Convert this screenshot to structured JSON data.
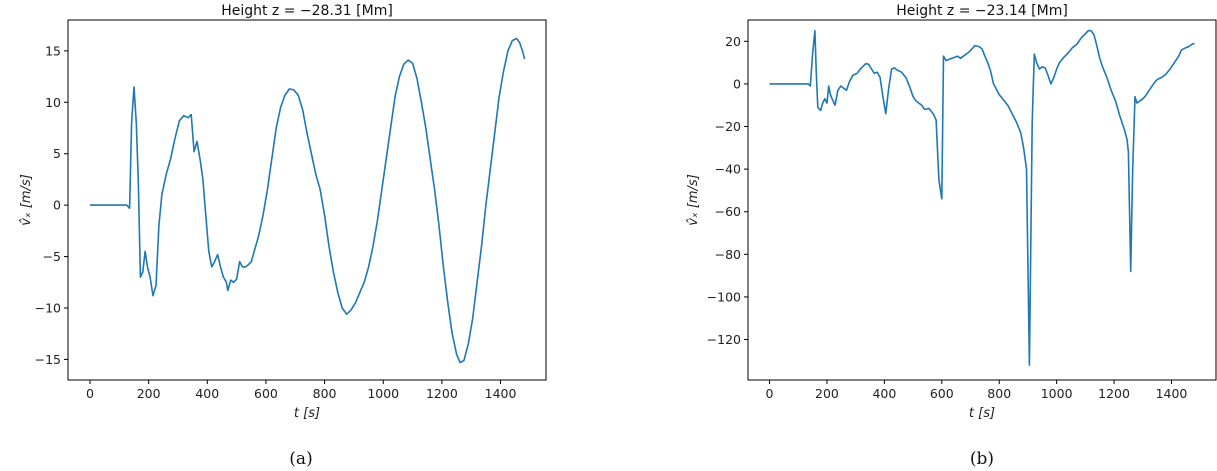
{
  "chart_data": [
    {
      "type": "line",
      "title": "Height z = −28.31 [Mm]",
      "xlabel": "t [s]",
      "ylabel": "v̂ₓ [m/s]",
      "caption": "(a)",
      "xlim": [
        -75,
        1555
      ],
      "ylim": [
        -17,
        18
      ],
      "xticks": [
        0,
        200,
        400,
        600,
        800,
        1000,
        1200,
        1400
      ],
      "yticks": [
        -15,
        -10,
        -5,
        0,
        5,
        10,
        15
      ],
      "series": [
        {
          "color": "#1f77b4",
          "points": [
            [
              0,
              0
            ],
            [
              60,
              0
            ],
            [
              110,
              0
            ],
            [
              125,
              0
            ],
            [
              135,
              -0.3
            ],
            [
              142,
              8
            ],
            [
              150,
              11.5
            ],
            [
              158,
              8
            ],
            [
              165,
              2
            ],
            [
              172,
              -7
            ],
            [
              180,
              -6.5
            ],
            [
              188,
              -4.5
            ],
            [
              196,
              -6
            ],
            [
              205,
              -7
            ],
            [
              215,
              -8.8
            ],
            [
              225,
              -7.8
            ],
            [
              235,
              -2
            ],
            [
              245,
              1
            ],
            [
              260,
              3
            ],
            [
              275,
              4.5
            ],
            [
              290,
              6.5
            ],
            [
              305,
              8.2
            ],
            [
              320,
              8.7
            ],
            [
              335,
              8.5
            ],
            [
              345,
              8.8
            ],
            [
              355,
              5.2
            ],
            [
              365,
              6.2
            ],
            [
              375,
              4.5
            ],
            [
              385,
              2.5
            ],
            [
              395,
              -1
            ],
            [
              405,
              -4.5
            ],
            [
              415,
              -6
            ],
            [
              425,
              -5.5
            ],
            [
              435,
              -4.8
            ],
            [
              445,
              -6
            ],
            [
              455,
              -7
            ],
            [
              465,
              -7.5
            ],
            [
              470,
              -8.3
            ],
            [
              480,
              -7.3
            ],
            [
              490,
              -7.5
            ],
            [
              500,
              -7.2
            ],
            [
              510,
              -5.5
            ],
            [
              520,
              -6
            ],
            [
              530,
              -6
            ],
            [
              540,
              -5.8
            ],
            [
              550,
              -5.5
            ],
            [
              560,
              -4.5
            ],
            [
              575,
              -3
            ],
            [
              590,
              -1
            ],
            [
              605,
              1.5
            ],
            [
              620,
              4.5
            ],
            [
              635,
              7.5
            ],
            [
              650,
              9.5
            ],
            [
              665,
              10.7
            ],
            [
              680,
              11.3
            ],
            [
              695,
              11.2
            ],
            [
              710,
              10.7
            ],
            [
              725,
              9.3
            ],
            [
              740,
              7
            ],
            [
              755,
              5
            ],
            [
              770,
              3
            ],
            [
              785,
              1.5
            ],
            [
              800,
              -1
            ],
            [
              815,
              -4
            ],
            [
              830,
              -6.5
            ],
            [
              845,
              -8.5
            ],
            [
              860,
              -10
            ],
            [
              875,
              -10.6
            ],
            [
              890,
              -10.2
            ],
            [
              905,
              -9.5
            ],
            [
              920,
              -8.5
            ],
            [
              935,
              -7.5
            ],
            [
              950,
              -6
            ],
            [
              965,
              -4
            ],
            [
              980,
              -1.5
            ],
            [
              995,
              1.5
            ],
            [
              1010,
              4.5
            ],
            [
              1025,
              7.5
            ],
            [
              1040,
              10.5
            ],
            [
              1055,
              12.5
            ],
            [
              1070,
              13.7
            ],
            [
              1085,
              14.1
            ],
            [
              1100,
              13.8
            ],
            [
              1115,
              12.3
            ],
            [
              1130,
              10
            ],
            [
              1145,
              7.5
            ],
            [
              1160,
              4.5
            ],
            [
              1175,
              1.5
            ],
            [
              1190,
              -2
            ],
            [
              1205,
              -6
            ],
            [
              1220,
              -9.5
            ],
            [
              1235,
              -12.5
            ],
            [
              1250,
              -14.5
            ],
            [
              1262,
              -15.3
            ],
            [
              1275,
              -15.1
            ],
            [
              1290,
              -13.5
            ],
            [
              1305,
              -11
            ],
            [
              1320,
              -7.5
            ],
            [
              1335,
              -4
            ],
            [
              1350,
              0
            ],
            [
              1365,
              3.5
            ],
            [
              1380,
              7
            ],
            [
              1395,
              10.5
            ],
            [
              1410,
              13
            ],
            [
              1425,
              15
            ],
            [
              1440,
              16
            ],
            [
              1455,
              16.2
            ],
            [
              1465,
              15.8
            ],
            [
              1475,
              15
            ],
            [
              1482,
              14.2
            ]
          ]
        }
      ]
    },
    {
      "type": "line",
      "title": "Height z = −23.14 [Mm]",
      "xlabel": "t [s]",
      "ylabel": "v̂ₓ [m/s]",
      "caption": "(b)",
      "xlim": [
        -75,
        1555
      ],
      "ylim": [
        -139,
        30
      ],
      "xticks": [
        0,
        200,
        400,
        600,
        800,
        1000,
        1200,
        1400
      ],
      "yticks": [
        -120,
        -100,
        -80,
        -60,
        -40,
        -20,
        0,
        20
      ],
      "series": [
        {
          "color": "#1f77b4",
          "points": [
            [
              0,
              0
            ],
            [
              60,
              0
            ],
            [
              120,
              0
            ],
            [
              135,
              0
            ],
            [
              142,
              -1
            ],
            [
              150,
              14
            ],
            [
              158,
              25
            ],
            [
              163,
              5
            ],
            [
              168,
              -11
            ],
            [
              178,
              -12.5
            ],
            [
              185,
              -9
            ],
            [
              193,
              -7
            ],
            [
              200,
              -9
            ],
            [
              206,
              -1
            ],
            [
              212,
              -5
            ],
            [
              218,
              -7
            ],
            [
              228,
              -10
            ],
            [
              238,
              -3
            ],
            [
              248,
              -1
            ],
            [
              258,
              -2
            ],
            [
              268,
              -3
            ],
            [
              278,
              1
            ],
            [
              290,
              4
            ],
            [
              305,
              5
            ],
            [
              320,
              7.5
            ],
            [
              335,
              9.5
            ],
            [
              345,
              9.2
            ],
            [
              355,
              7
            ],
            [
              365,
              5
            ],
            [
              375,
              5.5
            ],
            [
              385,
              3
            ],
            [
              395,
              -6
            ],
            [
              405,
              -14
            ],
            [
              415,
              -2
            ],
            [
              425,
              7
            ],
            [
              435,
              7.5
            ],
            [
              445,
              6.5
            ],
            [
              460,
              5.5
            ],
            [
              475,
              3
            ],
            [
              490,
              -2
            ],
            [
              500,
              -6
            ],
            [
              510,
              -8
            ],
            [
              520,
              -9
            ],
            [
              530,
              -10
            ],
            [
              540,
              -12
            ],
            [
              555,
              -11.5
            ],
            [
              570,
              -14
            ],
            [
              580,
              -17
            ],
            [
              590,
              -45
            ],
            [
              600,
              -54
            ],
            [
              606,
              13
            ],
            [
              615,
              11
            ],
            [
              625,
              11.5
            ],
            [
              635,
              12
            ],
            [
              645,
              12.5
            ],
            [
              655,
              13
            ],
            [
              665,
              12
            ],
            [
              675,
              13
            ],
            [
              685,
              14
            ],
            [
              695,
              15
            ],
            [
              705,
              16.5
            ],
            [
              715,
              18
            ],
            [
              730,
              17.5
            ],
            [
              740,
              16.5
            ],
            [
              750,
              13
            ],
            [
              760,
              10
            ],
            [
              770,
              6
            ],
            [
              780,
              0
            ],
            [
              790,
              -2.5
            ],
            [
              800,
              -5
            ],
            [
              815,
              -7.5
            ],
            [
              830,
              -10
            ],
            [
              845,
              -14
            ],
            [
              860,
              -18
            ],
            [
              875,
              -23
            ],
            [
              885,
              -30
            ],
            [
              895,
              -40
            ],
            [
              905,
              -132
            ],
            [
              915,
              -18
            ],
            [
              922,
              14
            ],
            [
              930,
              10
            ],
            [
              940,
              7
            ],
            [
              950,
              8
            ],
            [
              960,
              7.5
            ],
            [
              970,
              4
            ],
            [
              980,
              0
            ],
            [
              990,
              3
            ],
            [
              1000,
              7
            ],
            [
              1010,
              10
            ],
            [
              1025,
              12.5
            ],
            [
              1040,
              14.5
            ],
            [
              1055,
              17
            ],
            [
              1070,
              18.5
            ],
            [
              1085,
              21.5
            ],
            [
              1100,
              23.5
            ],
            [
              1110,
              25
            ],
            [
              1120,
              25
            ],
            [
              1130,
              23
            ],
            [
              1140,
              18
            ],
            [
              1150,
              12
            ],
            [
              1160,
              8
            ],
            [
              1175,
              3
            ],
            [
              1190,
              -3
            ],
            [
              1205,
              -8
            ],
            [
              1220,
              -15
            ],
            [
              1235,
              -21
            ],
            [
              1245,
              -26
            ],
            [
              1250,
              -32
            ],
            [
              1258,
              -88
            ],
            [
              1265,
              -40
            ],
            [
              1273,
              -6
            ],
            [
              1280,
              -9
            ],
            [
              1290,
              -8
            ],
            [
              1300,
              -7
            ],
            [
              1310,
              -5.5
            ],
            [
              1320,
              -3.5
            ],
            [
              1330,
              -1.5
            ],
            [
              1340,
              0.5
            ],
            [
              1350,
              2
            ],
            [
              1365,
              3
            ],
            [
              1380,
              4.5
            ],
            [
              1395,
              7
            ],
            [
              1410,
              10
            ],
            [
              1425,
              13
            ],
            [
              1435,
              16
            ],
            [
              1450,
              17
            ],
            [
              1460,
              17.5
            ],
            [
              1470,
              18.5
            ],
            [
              1480,
              19
            ]
          ]
        }
      ]
    }
  ]
}
